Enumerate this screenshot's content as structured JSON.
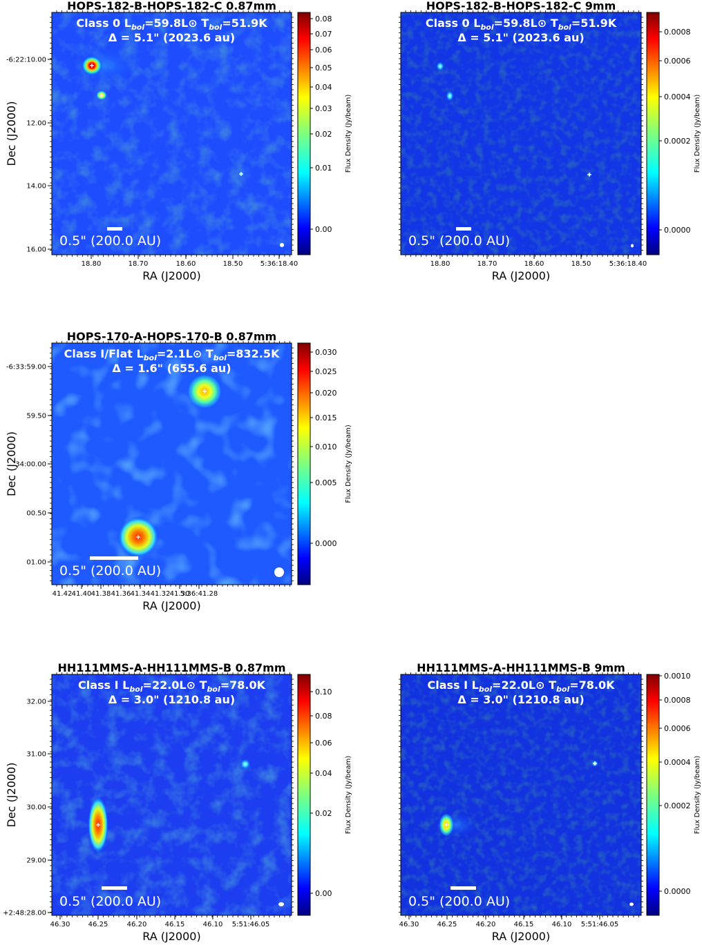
{
  "figure": {
    "panels": [
      {
        "id": "p1",
        "title": "HOPS-182-B-HOPS-182-C 0.87mm",
        "overlay_line1": "Class 0  L_bol=59.8L⊙  T_bol=51.9K",
        "overlay_line1_parts": {
          "a": "Class 0  L",
          "b": "bol",
          "c": "=59.8L⊙  T",
          "d": "bol",
          "e": "=51.9K"
        },
        "overlay_line2": "Δ = 5.1\" (2023.6 au)",
        "scale_label": "0.5\" (200.0 AU)",
        "xlabel": "RA (J2000)",
        "ylabel": "Dec (J2000)",
        "x_ticks": [
          "18.80",
          "18.70",
          "18.60",
          "18.50",
          "5:36:18.40"
        ],
        "y_ticks": [
          "-6:22:10.00",
          "12.00",
          "14.00",
          "16.00"
        ],
        "colorbar_label": "Flux Density (Jy/beam)",
        "colorbar_ticks": [
          "0.08",
          "0.07",
          "0.06",
          "0.05",
          "0.04",
          "0.03",
          "0.02",
          "0.01",
          "0.00"
        ],
        "sources": [
          {
            "label": "B",
            "strength": "strong"
          },
          {
            "label": "C",
            "strength": "medium"
          },
          {
            "label": "marker",
            "strength": "marker"
          }
        ]
      },
      {
        "id": "p2",
        "title": "HOPS-182-B-HOPS-182-C 9mm",
        "overlay_line1_parts": {
          "a": "Class 0  L",
          "b": "bol",
          "c": "=59.8L⊙  T",
          "d": "bol",
          "e": "=51.9K"
        },
        "overlay_line2": "Δ = 5.1\" (2023.6 au)",
        "scale_label": "0.5\" (200.0 AU)",
        "xlabel": "RA (J2000)",
        "x_ticks": [
          "18.80",
          "18.70",
          "18.60",
          "18.50",
          "5:36:18.40"
        ],
        "colorbar_label": "Flux Density (Jy/beam)",
        "colorbar_ticks": [
          "0.0008",
          "0.0006",
          "0.0004",
          "0.0002",
          "0.0000"
        ]
      },
      {
        "id": "p3",
        "title": "HOPS-170-A-HOPS-170-B 0.87mm",
        "overlay_line1_parts": {
          "a": "Class I/Flat  L",
          "b": "bol",
          "c": "=2.1L⊙  T",
          "d": "bol",
          "e": "=832.5K"
        },
        "overlay_line2": "Δ = 1.6\" (655.6 au)",
        "scale_label": "0.5\" (200.0 AU)",
        "xlabel": "RA (J2000)",
        "ylabel": "Dec (J2000)",
        "x_ticks": [
          "41.42",
          "41.40",
          "41.38",
          "41.36",
          "41.34",
          "41.32",
          "41.30",
          "5:36:41.28"
        ],
        "y_ticks": [
          "-6:33:59.00",
          "59.50",
          "34:00.00",
          "00.50",
          "01.00"
        ],
        "colorbar_label": "Flux Density (Jy/beam)",
        "colorbar_ticks": [
          "0.030",
          "0.025",
          "0.020",
          "0.015",
          "0.010",
          "0.005",
          "0.000"
        ]
      },
      {
        "id": "p4",
        "title": "HH111MMS-A-HH111MMS-B 0.87mm",
        "overlay_line1_parts": {
          "a": "Class I  L",
          "b": "bol",
          "c": "=22.0L⊙  T",
          "d": "bol",
          "e": "=78.0K"
        },
        "overlay_line2": "Δ = 3.0\" (1210.8 au)",
        "scale_label": "0.5\" (200.0 AU)",
        "xlabel": "RA (J2000)",
        "ylabel": "Dec (J2000)",
        "x_ticks": [
          "46.30",
          "46.25",
          "46.20",
          "46.15",
          "46.10",
          "5:51:46.05"
        ],
        "y_ticks": [
          "32.00",
          "31.00",
          "30.00",
          "29.00",
          "+2:48:28.00"
        ],
        "colorbar_label": "Flux Density (Jy/beam)",
        "colorbar_ticks": [
          "0.10",
          "0.08",
          "0.06",
          "0.04",
          "0.02",
          "0.00"
        ]
      },
      {
        "id": "p5",
        "title": "HH111MMS-A-HH111MMS-B 9mm",
        "overlay_line1_parts": {
          "a": "Class I  L",
          "b": "bol",
          "c": "=22.0L⊙  T",
          "d": "bol",
          "e": "=78.0K"
        },
        "overlay_line2": "Δ = 3.0\" (1210.8 au)",
        "scale_label": "0.5\" (200.0 AU)",
        "xlabel": "RA (J2000)",
        "x_ticks": [
          "46.30",
          "46.25",
          "46.20",
          "46.15",
          "46.10",
          "5:51:46.05"
        ],
        "colorbar_label": "Flux Density (Jy/beam)",
        "colorbar_ticks": [
          "0.0010",
          "0.0008",
          "0.0006",
          "0.0004",
          "0.0002",
          "0.0000"
        ]
      }
    ]
  },
  "chart_data": [
    {
      "type": "heatmap",
      "title": "HOPS-182-B-HOPS-182-C 0.87mm",
      "xlabel": "RA (J2000)",
      "ylabel": "Dec (J2000)",
      "x_tick_labels": [
        "18.80",
        "18.70",
        "18.60",
        "18.50",
        "5:36:18.40"
      ],
      "y_tick_labels": [
        "-6:22:10.00",
        "12.00",
        "14.00",
        "16.00"
      ],
      "colorbar": {
        "label": "Flux Density (Jy/beam)",
        "range": [
          -0.004,
          0.082
        ],
        "scale": "asinh",
        "ticks": [
          0.08,
          0.07,
          0.06,
          0.05,
          0.04,
          0.03,
          0.02,
          0.01,
          0.0
        ]
      },
      "sources": [
        {
          "ra": "5:36:18.80",
          "dec": "-6:22:10.2",
          "peak_flux_jy_per_beam": 0.082
        },
        {
          "ra": "5:36:18.78",
          "dec": "-6:22:11.1",
          "peak_flux_jy_per_beam": 0.035
        },
        {
          "ra": "5:36:18.48",
          "dec": "-6:22:13.7",
          "peak_flux_jy_per_beam": 0.0
        }
      ]
    },
    {
      "type": "heatmap",
      "title": "HOPS-182-B-HOPS-182-C 9mm",
      "xlabel": "RA (J2000)",
      "x_tick_labels": [
        "18.80",
        "18.70",
        "18.60",
        "18.50",
        "5:36:18.40"
      ],
      "colorbar": {
        "label": "Flux Density (Jy/beam)",
        "range": [
          -5e-05,
          0.0009
        ],
        "scale": "asinh",
        "ticks": [
          0.0008,
          0.0006,
          0.0004,
          0.0002,
          0.0
        ]
      },
      "sources": [
        {
          "ra": "5:36:18.80",
          "dec": "-6:22:10.2",
          "peak_flux_jy_per_beam": 0.00018
        },
        {
          "ra": "5:36:18.78",
          "dec": "-6:22:11.2",
          "peak_flux_jy_per_beam": 0.0001
        }
      ]
    },
    {
      "type": "heatmap",
      "title": "HOPS-170-A-HOPS-170-B 0.87mm",
      "xlabel": "RA (J2000)",
      "ylabel": "Dec (J2000)",
      "x_tick_labels": [
        "41.42",
        "41.40",
        "41.38",
        "41.36",
        "41.34",
        "41.32",
        "41.30",
        "5:36:41.28"
      ],
      "y_tick_labels": [
        "-6:33:59.00",
        "59.50",
        "34:00.00",
        "00.50",
        "01.00"
      ],
      "colorbar": {
        "label": "Flux Density (Jy/beam)",
        "range": [
          -0.002,
          0.032
        ],
        "scale": "asinh",
        "ticks": [
          0.03,
          0.025,
          0.02,
          0.015,
          0.01,
          0.005,
          0.0
        ]
      },
      "sources": [
        {
          "ra": "5:36:41.32",
          "dec": "-6:33:59.3",
          "peak_flux_jy_per_beam": 0.022
        },
        {
          "ra": "5:36:41.37",
          "dec": "-6:34:00.8",
          "peak_flux_jy_per_beam": 0.031
        }
      ]
    },
    {
      "type": "heatmap",
      "title": "HH111MMS-A-HH111MMS-B 0.87mm",
      "xlabel": "RA (J2000)",
      "ylabel": "Dec (J2000)",
      "x_tick_labels": [
        "46.30",
        "46.25",
        "46.20",
        "46.15",
        "46.10",
        "5:51:46.05"
      ],
      "y_tick_labels": [
        "32.00",
        "31.00",
        "30.00",
        "29.00",
        "+2:48:28.00"
      ],
      "colorbar": {
        "label": "Flux Density (Jy/beam)",
        "range": [
          -0.005,
          0.11
        ],
        "scale": "asinh",
        "ticks": [
          0.1,
          0.08,
          0.06,
          0.04,
          0.02,
          0.0
        ]
      },
      "sources": [
        {
          "ra": "5:51:46.25",
          "dec": "+2:48:29.6",
          "peak_flux_jy_per_beam": 0.11
        },
        {
          "ra": "5:51:46.08",
          "dec": "+2:48:30.8",
          "peak_flux_jy_per_beam": 0.012
        }
      ]
    },
    {
      "type": "heatmap",
      "title": "HH111MMS-A-HH111MMS-B 9mm",
      "xlabel": "RA (J2000)",
      "x_tick_labels": [
        "46.30",
        "46.25",
        "46.20",
        "46.15",
        "46.10",
        "5:51:46.05"
      ],
      "colorbar": {
        "label": "Flux Density (Jy/beam)",
        "range": [
          -5e-05,
          0.001
        ],
        "scale": "asinh",
        "ticks": [
          0.001,
          0.0008,
          0.0006,
          0.0004,
          0.0002,
          0.0
        ]
      },
      "sources": [
        {
          "ra": "5:51:46.25",
          "dec": "+2:48:29.6",
          "peak_flux_jy_per_beam": 0.0005
        },
        {
          "ra": "5:51:46.08",
          "dec": "+2:48:30.8",
          "peak_flux_jy_per_beam": 3e-05
        }
      ]
    }
  ]
}
